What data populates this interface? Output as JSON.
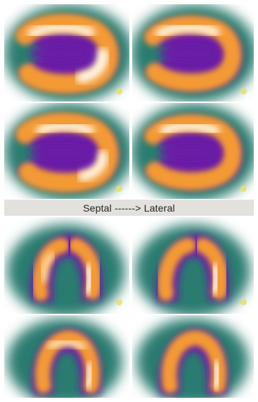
{
  "separator": {
    "label": "Septal ------> Lateral"
  },
  "colors": {
    "background": "#ffffff",
    "outer_halo": "#1f6e63",
    "mid_ring": "#6a1aa6",
    "ring_inner": "#b3309e",
    "hot": "#f7a13a",
    "hottest": "#fff6e6",
    "band": "#e3e1de"
  },
  "panels": [
    {
      "id": "upper-left-top"
    },
    {
      "id": "upper-right-top"
    },
    {
      "id": "upper-left-bottom"
    },
    {
      "id": "upper-right-bottom"
    },
    {
      "id": "lower-left-top"
    },
    {
      "id": "lower-right-top"
    },
    {
      "id": "lower-left-bottom"
    },
    {
      "id": "lower-right-bottom"
    }
  ]
}
